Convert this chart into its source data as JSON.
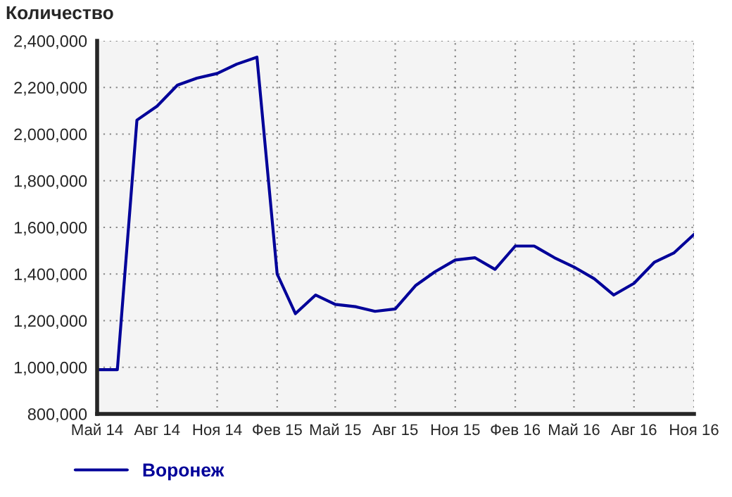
{
  "chart_data": {
    "type": "line",
    "title": "Количество",
    "x": [
      "2014-05",
      "2014-06",
      "2014-07",
      "2014-08",
      "2014-09",
      "2014-10",
      "2014-11",
      "2014-12",
      "2015-01",
      "2015-02",
      "2015-03",
      "2015-04",
      "2015-05",
      "2015-06",
      "2015-07",
      "2015-08",
      "2015-09",
      "2015-10",
      "2015-11",
      "2015-12",
      "2016-01",
      "2016-02",
      "2016-03",
      "2016-04",
      "2016-05",
      "2016-06",
      "2016-07",
      "2016-08",
      "2016-09",
      "2016-10",
      "2016-11"
    ],
    "series": [
      {
        "name": "Воронеж",
        "color": "#000099",
        "values": [
          990000,
          990000,
          2060000,
          2120000,
          2210000,
          2240000,
          2260000,
          2300000,
          2330000,
          1400000,
          1230000,
          1310000,
          1270000,
          1260000,
          1240000,
          1250000,
          1350000,
          1410000,
          1460000,
          1470000,
          1420000,
          1520000,
          1520000,
          1470000,
          1430000,
          1380000,
          1310000,
          1360000,
          1450000,
          1490000,
          1570000
        ]
      }
    ],
    "xlim": [
      "2014-05",
      "2016-11"
    ],
    "xticks": [
      {
        "value": "2014-05",
        "label": "Май 14"
      },
      {
        "value": "2014-08",
        "label": "Авг 14"
      },
      {
        "value": "2014-11",
        "label": "Ноя 14"
      },
      {
        "value": "2015-02",
        "label": "Фев 15"
      },
      {
        "value": "2015-05",
        "label": "Май 15"
      },
      {
        "value": "2015-08",
        "label": "Авг 15"
      },
      {
        "value": "2015-11",
        "label": "Ноя 15"
      },
      {
        "value": "2016-02",
        "label": "Фев 16"
      },
      {
        "value": "2016-05",
        "label": "Май 16"
      },
      {
        "value": "2016-08",
        "label": "Авг 16"
      },
      {
        "value": "2016-11",
        "label": "Ноя 16"
      }
    ],
    "ylim": [
      800000,
      2400000
    ],
    "yticks": [
      {
        "value": 800000,
        "label": "800,000"
      },
      {
        "value": 1000000,
        "label": "1,000,000"
      },
      {
        "value": 1200000,
        "label": "1,200,000"
      },
      {
        "value": 1400000,
        "label": "1,400,000"
      },
      {
        "value": 1600000,
        "label": "1,600,000"
      },
      {
        "value": 1800000,
        "label": "1,800,000"
      },
      {
        "value": 2000000,
        "label": "2,000,000"
      },
      {
        "value": 2200000,
        "label": "2,200,000"
      },
      {
        "value": 2400000,
        "label": "2,400,000"
      }
    ],
    "grid": true,
    "legend": "bottom left",
    "marker": "none",
    "line_style": "solid"
  }
}
